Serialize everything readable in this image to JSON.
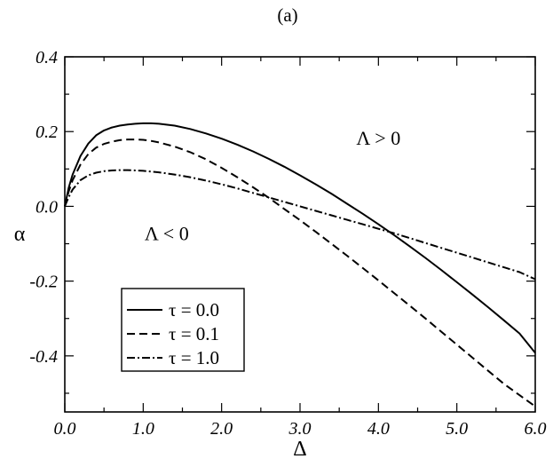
{
  "chart_data": {
    "type": "line",
    "panel_label": "(a)",
    "xlabel": "Δ",
    "ylabel": "α",
    "xlim": [
      0.0,
      6.0
    ],
    "ylim": [
      -0.55,
      0.4
    ],
    "x_ticks": [
      0.0,
      1.0,
      2.0,
      3.0,
      4.0,
      5.0,
      6.0
    ],
    "x_tick_labels": [
      "0.0",
      "1.0",
      "2.0",
      "3.0",
      "4.0",
      "5.0",
      "6.0"
    ],
    "y_ticks": [
      -0.4,
      -0.2,
      0.0,
      0.2,
      0.4
    ],
    "y_tick_labels": [
      "-0.4",
      "-0.2",
      "0.0",
      "0.2",
      "0.4"
    ],
    "grid": false,
    "legend_position": "bottom-left",
    "annotations": [
      {
        "text": "Λ > 0",
        "x": 4.0,
        "y": 0.165
      },
      {
        "text": "Λ < 0",
        "x": 1.3,
        "y": -0.09
      }
    ],
    "series": [
      {
        "name": "τ = 0.0",
        "style": "solid",
        "x": [
          0.0,
          0.05,
          0.1,
          0.2,
          0.3,
          0.4,
          0.5,
          0.6,
          0.7,
          0.8,
          0.9,
          1.0,
          1.1,
          1.2,
          1.4,
          1.6,
          1.8,
          2.0,
          2.2,
          2.4,
          2.6,
          2.8,
          3.0,
          3.2,
          3.4,
          3.6,
          3.8,
          4.0,
          4.2,
          4.4,
          4.6,
          4.8,
          5.0,
          5.2,
          5.4,
          5.6,
          5.8,
          6.0
        ],
        "y": [
          0.0,
          0.05,
          0.085,
          0.135,
          0.168,
          0.19,
          0.203,
          0.211,
          0.216,
          0.219,
          0.221,
          0.222,
          0.222,
          0.221,
          0.216,
          0.207,
          0.195,
          0.181,
          0.165,
          0.147,
          0.127,
          0.106,
          0.083,
          0.059,
          0.034,
          0.007,
          -0.02,
          -0.048,
          -0.077,
          -0.107,
          -0.138,
          -0.17,
          -0.203,
          -0.236,
          -0.27,
          -0.305,
          -0.34,
          -0.392
        ]
      },
      {
        "name": "τ = 0.1",
        "style": "dashed",
        "x": [
          0.0,
          0.05,
          0.1,
          0.2,
          0.3,
          0.4,
          0.5,
          0.6,
          0.7,
          0.8,
          0.9,
          1.0,
          1.1,
          1.2,
          1.4,
          1.6,
          1.8,
          2.0,
          2.2,
          2.4,
          2.6,
          2.8,
          3.0,
          3.2,
          3.4,
          3.6,
          3.8,
          4.0,
          4.2,
          4.4,
          4.6,
          4.8,
          5.0,
          5.2,
          5.4,
          5.6,
          5.8,
          6.0
        ],
        "y": [
          0.0,
          0.04,
          0.07,
          0.112,
          0.14,
          0.157,
          0.167,
          0.173,
          0.177,
          0.179,
          0.179,
          0.178,
          0.175,
          0.171,
          0.16,
          0.145,
          0.126,
          0.103,
          0.078,
          0.051,
          0.023,
          -0.007,
          -0.037,
          -0.068,
          -0.1,
          -0.132,
          -0.165,
          -0.198,
          -0.232,
          -0.266,
          -0.3,
          -0.335,
          -0.37,
          -0.405,
          -0.44,
          -0.475,
          -0.505,
          -0.535
        ]
      },
      {
        "name": "τ = 1.0",
        "style": "dashdot",
        "x": [
          0.0,
          0.05,
          0.1,
          0.2,
          0.3,
          0.4,
          0.5,
          0.6,
          0.7,
          0.8,
          0.9,
          1.0,
          1.2,
          1.4,
          1.6,
          1.8,
          2.0,
          2.2,
          2.4,
          2.6,
          2.8,
          3.0,
          3.2,
          3.4,
          3.6,
          3.8,
          4.0,
          4.2,
          4.4,
          4.6,
          4.8,
          5.0,
          5.2,
          5.4,
          5.6,
          5.8,
          6.0
        ],
        "y": [
          0.0,
          0.025,
          0.045,
          0.07,
          0.083,
          0.09,
          0.094,
          0.096,
          0.097,
          0.097,
          0.096,
          0.095,
          0.091,
          0.085,
          0.078,
          0.069,
          0.059,
          0.048,
          0.036,
          0.024,
          0.012,
          0.0,
          -0.012,
          -0.024,
          -0.036,
          -0.048,
          -0.06,
          -0.072,
          -0.085,
          -0.098,
          -0.111,
          -0.124,
          -0.137,
          -0.15,
          -0.163,
          -0.176,
          -0.195
        ]
      }
    ]
  }
}
